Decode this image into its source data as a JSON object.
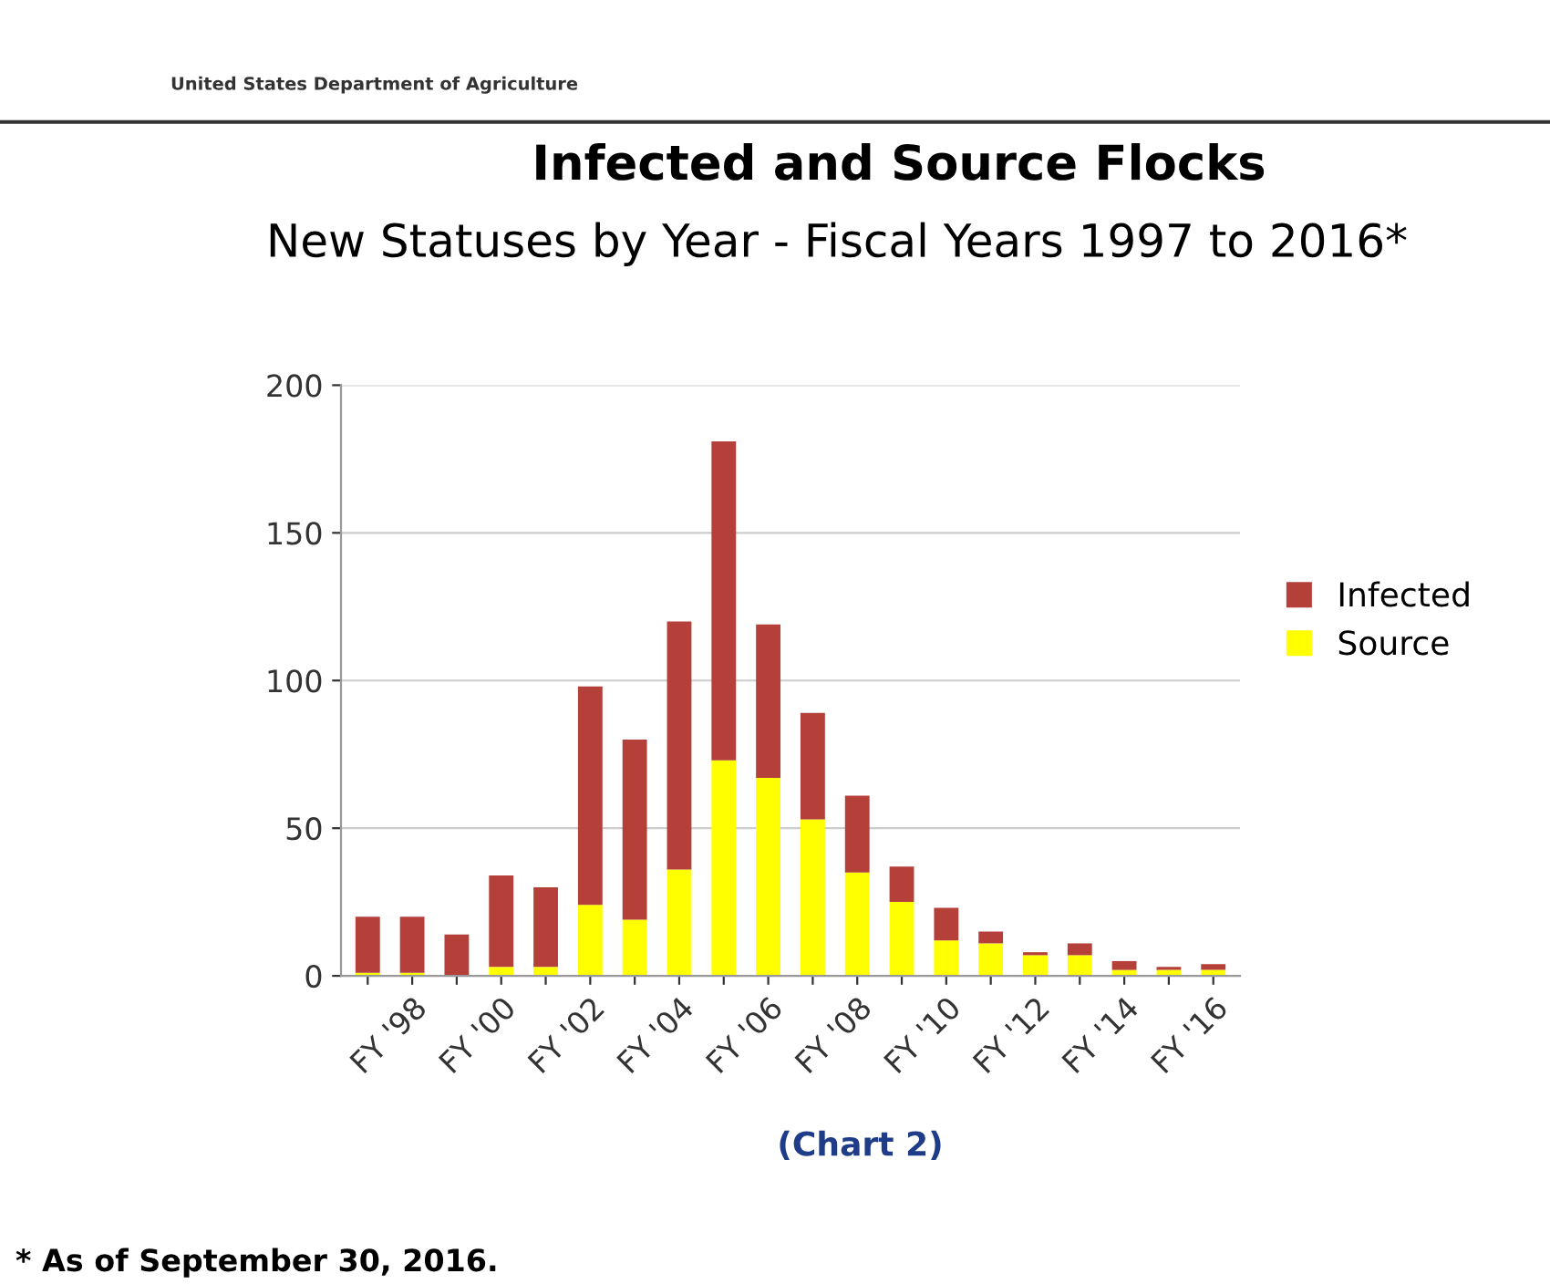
{
  "chart_data": {
    "type": "bar",
    "title": "Infected and Source Flocks",
    "subtitle": "New Statuses by Year - Fiscal Years 1997 to 2016*",
    "annotations": [
      "United States Department of Agriculture",
      "(Chart 2)",
      "* As of September 30, 2016."
    ],
    "categories": [
      null,
      "FY '98",
      null,
      "FY '00",
      null,
      "FY '02",
      null,
      "FY '04",
      null,
      "FY '06",
      null,
      "FY '08",
      null,
      "FY '10",
      null,
      "FY '12",
      null,
      "FY '14",
      null,
      "FY '16"
    ],
    "stacked": true,
    "series": [
      {
        "name": "Source",
        "color": "#ffff00",
        "values": [
          1,
          1,
          0,
          3,
          3,
          24,
          19,
          36,
          73,
          67,
          53,
          35,
          25,
          12,
          11,
          7,
          7,
          2,
          2,
          2
        ]
      },
      {
        "name": "Infected",
        "color": "#b5403a",
        "values": [
          19,
          19,
          14,
          31,
          27,
          74,
          61,
          84,
          108,
          52,
          36,
          26,
          12,
          11,
          4,
          1,
          4,
          3,
          1,
          2
        ]
      }
    ],
    "ylim": [
      0,
      200
    ],
    "yticks": [
      0,
      50,
      100,
      150,
      200
    ],
    "grid": "y",
    "legend": "right"
  }
}
